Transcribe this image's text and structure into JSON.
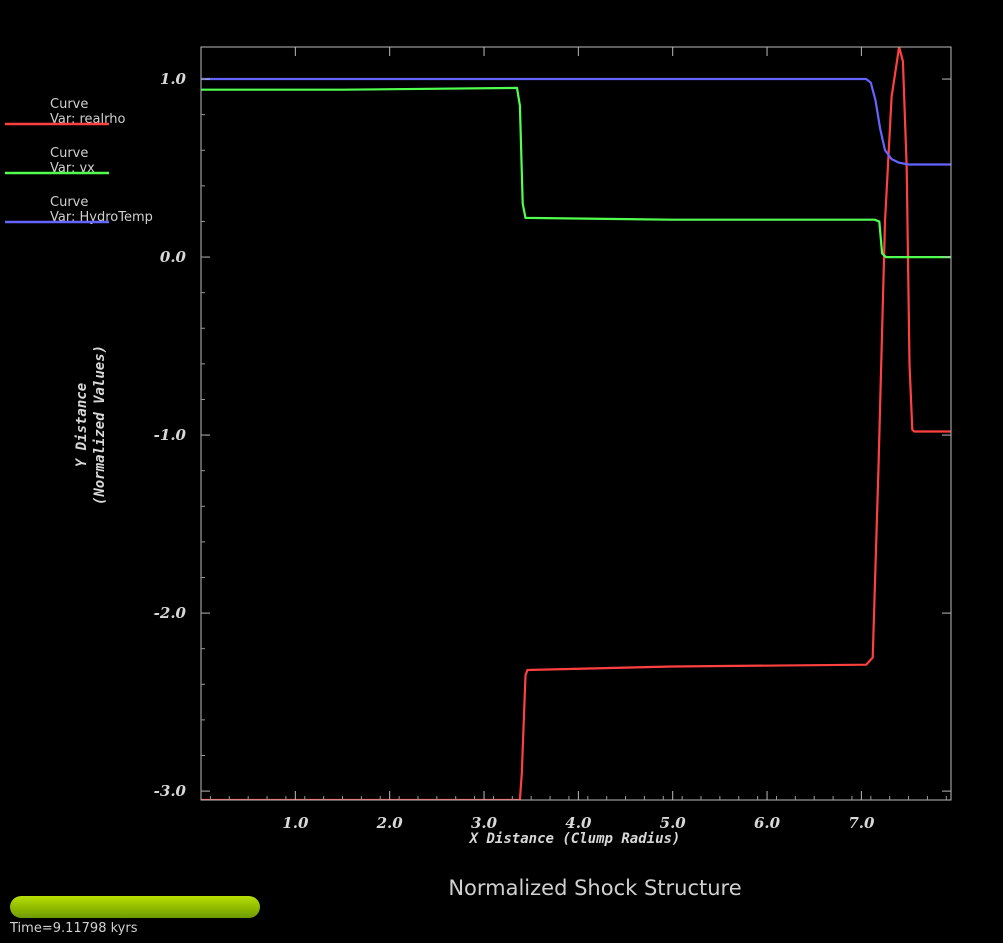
{
  "chart_data": {
    "type": "line",
    "title": "Normalized Shock Structure",
    "xlabel": "X Distance (Clump Radius)",
    "ylabel_line1": "Y Distance",
    "ylabel_line2": "(Normalized Values)",
    "xlim": [
      0.0,
      7.95
    ],
    "ylim": [
      -3.05,
      1.18
    ],
    "xticks": [
      "1.0",
      "2.0",
      "3.0",
      "4.0",
      "5.0",
      "6.0",
      "7.0"
    ],
    "yticks": [
      "1.0",
      "0.0",
      "-1.0",
      "-2.0",
      "-3.0"
    ],
    "grid": false,
    "legend": "left",
    "series": [
      {
        "label_line1": "Curve",
        "label_line2": "Var: realrho",
        "color": "#ff4040",
        "x": [
          0.0,
          3.38,
          3.4,
          3.44,
          3.46,
          5.0,
          7.05,
          7.12,
          7.18,
          7.25,
          7.32,
          7.4,
          7.44,
          7.48,
          7.51,
          7.54,
          7.56,
          7.95
        ],
        "y": [
          -3.05,
          -3.05,
          -2.9,
          -2.35,
          -2.32,
          -2.3,
          -2.29,
          -2.25,
          -1.2,
          0.2,
          0.9,
          1.18,
          1.1,
          0.5,
          -0.6,
          -0.97,
          -0.98,
          -0.98
        ]
      },
      {
        "label_line1": "Curve",
        "label_line2": "Var: vx",
        "color": "#50ff50",
        "x": [
          0.0,
          1.5,
          3.35,
          3.38,
          3.41,
          3.44,
          5.0,
          7.05,
          7.14,
          7.19,
          7.22,
          7.26,
          7.95
        ],
        "y": [
          0.94,
          0.94,
          0.95,
          0.85,
          0.3,
          0.22,
          0.21,
          0.21,
          0.21,
          0.2,
          0.02,
          0.0,
          0.0
        ],
        "y_note": ""
      },
      {
        "label_line1": "Curve",
        "label_line2": "Var: HydroTemp",
        "color": "#6464ff",
        "x": [
          0.0,
          7.05,
          7.1,
          7.15,
          7.2,
          7.25,
          7.32,
          7.4,
          7.5,
          7.95
        ],
        "y": [
          1.0,
          1.0,
          0.98,
          0.88,
          0.72,
          0.6,
          0.55,
          0.53,
          0.52,
          0.52
        ]
      }
    ]
  },
  "time_slider": {
    "label": "Time=9.11798 kyrs",
    "progress": 1.0,
    "color": "#9acd00"
  }
}
